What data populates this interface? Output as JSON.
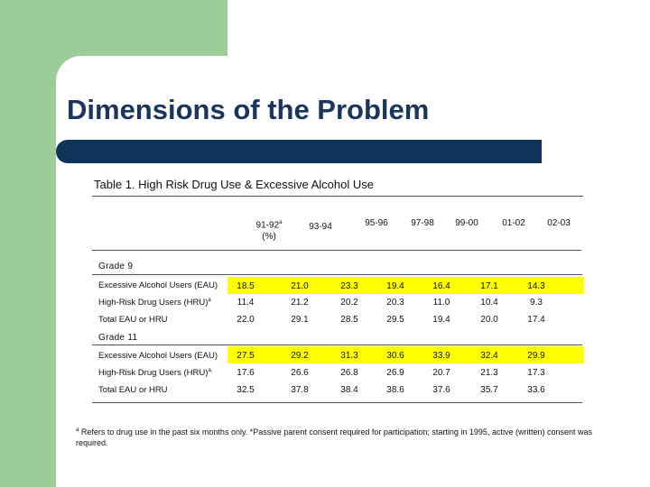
{
  "slide": {
    "title": "Dimensions of the Problem",
    "colors": {
      "green": "#9ccc98",
      "navy": "#10335a",
      "title": "#1a3560",
      "highlight": "#ffff00"
    }
  },
  "table": {
    "caption": "Table 1. High Risk Drug Use & Excessive Alcohol Use",
    "headers": [
      "91-92",
      "93-94",
      "95-96",
      "97-98",
      "99-00",
      "01-02",
      "02-03"
    ],
    "first_header_marker": "a",
    "first_header_sub": "(%)",
    "sections": [
      {
        "grade": "Grade 9",
        "rows": [
          {
            "label": "Excessive Alcohol Users (EAU)",
            "marker": "",
            "values": [
              "18.5",
              "21.0",
              "23.3",
              "19.4",
              "16.4",
              "17.1",
              "14.3"
            ]
          },
          {
            "label": "High-Risk Drug Users (HRU)",
            "marker": "a",
            "values": [
              "11.4",
              "21.2",
              "20.2",
              "20.3",
              "11.0",
              "10.4",
              "9.3"
            ]
          },
          {
            "label": "Total EAU or HRU",
            "marker": "",
            "values": [
              "22.0",
              "29.1",
              "28.5",
              "29.5",
              "19.4",
              "20.0",
              "17.4"
            ]
          }
        ]
      },
      {
        "grade": "Grade 11",
        "rows": [
          {
            "label": "Excessive Alcohol Users (EAU)",
            "marker": "",
            "values": [
              "27.5",
              "29.2",
              "31.3",
              "30.6",
              "33.9",
              "32.4",
              "29.9"
            ]
          },
          {
            "label": "High-Risk Drug Users (HRU)",
            "marker": "a,",
            "values": [
              "17.6",
              "26.6",
              "26.8",
              "26.9",
              "20.7",
              "21.3",
              "17.3"
            ]
          },
          {
            "label": "Total EAU or HRU",
            "marker": "",
            "values": [
              "32.5",
              "37.8",
              "38.4",
              "38.6",
              "37.6",
              "35.7",
              "33.6"
            ]
          }
        ]
      }
    ]
  },
  "footnote": {
    "marker": "a",
    "text": "Refers to drug use in the past six months only.  *Passive parent consent required for participation; starting in 1995, active (written) consent was required."
  }
}
